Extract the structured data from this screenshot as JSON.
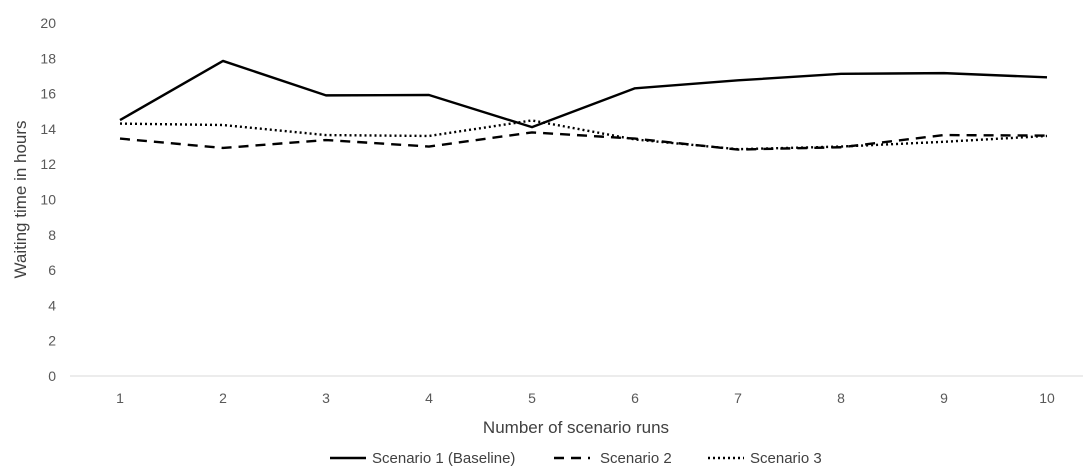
{
  "chart_data": {
    "type": "line",
    "title": "",
    "xlabel": "Number of scenario runs",
    "ylabel": "Waiting time in hours",
    "x": [
      1,
      2,
      3,
      4,
      5,
      6,
      7,
      8,
      9,
      10
    ],
    "ylim": [
      0,
      20
    ],
    "yticks": [
      0,
      2,
      4,
      6,
      8,
      10,
      12,
      14,
      16,
      18,
      20
    ],
    "grid": false,
    "legend_position": "bottom",
    "series": [
      {
        "name": "Scenario 1 (Baseline)",
        "style": "solid",
        "color": "#000000",
        "values": [
          14.5,
          17.85,
          15.9,
          15.92,
          14.1,
          16.3,
          16.75,
          17.12,
          17.16,
          16.92
        ]
      },
      {
        "name": "Scenario 2",
        "style": "dashed",
        "color": "#000000",
        "values": [
          13.45,
          12.92,
          13.37,
          13.0,
          13.8,
          13.45,
          12.83,
          12.96,
          13.65,
          13.62
        ]
      },
      {
        "name": "Scenario 3",
        "style": "dotted",
        "color": "#000000",
        "values": [
          14.3,
          14.22,
          13.65,
          13.6,
          14.48,
          13.4,
          12.85,
          13.0,
          13.27,
          13.6
        ]
      }
    ]
  }
}
